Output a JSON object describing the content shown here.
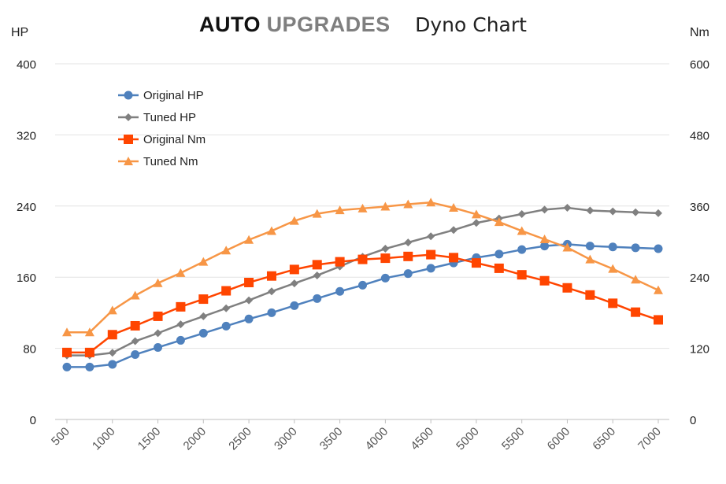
{
  "title": {
    "brand_bold": "AUTO",
    "brand_gray": "UPGRADES",
    "subtitle": "Dyno Chart"
  },
  "chart_data": {
    "type": "line",
    "x": [
      500,
      750,
      1000,
      1250,
      1500,
      1750,
      2000,
      2250,
      2500,
      2750,
      3000,
      3250,
      3500,
      3750,
      4000,
      4250,
      4500,
      4750,
      5000,
      5250,
      5500,
      5750,
      6000,
      6250,
      6500,
      6750,
      7000
    ],
    "x_tick_labels": [
      "500",
      "1000",
      "1500",
      "2000",
      "2500",
      "3000",
      "3500",
      "4000",
      "4500",
      "5000",
      "5500",
      "6000",
      "6500",
      "7000"
    ],
    "y_left": {
      "label": "HP",
      "range": [
        0,
        400
      ],
      "ticks": [
        "0",
        "80",
        "160",
        "240",
        "320",
        "400"
      ]
    },
    "y_right": {
      "label": "Nm",
      "range": [
        0,
        600
      ],
      "ticks": [
        "0",
        "120",
        "240",
        "360",
        "480",
        "600"
      ]
    },
    "grid": true,
    "legend_position": "top-left",
    "series": [
      {
        "name": "Original HP",
        "axis": "left",
        "color": "#4f81bd",
        "marker": "circle",
        "values": [
          59,
          59,
          62,
          73,
          81,
          89,
          97,
          105,
          113,
          120,
          128,
          136,
          144,
          151,
          159,
          164,
          170,
          176,
          182,
          186,
          191,
          195,
          197,
          195,
          194,
          193,
          192
        ]
      },
      {
        "name": "Tuned HP",
        "axis": "left",
        "color": "#808080",
        "marker": "diamond",
        "values": [
          72,
          72,
          75,
          88,
          97,
          107,
          116,
          125,
          134,
          144,
          153,
          162,
          172,
          183,
          192,
          199,
          206,
          213,
          221,
          226,
          231,
          236,
          238,
          235,
          234,
          233,
          232
        ]
      },
      {
        "name": "Original Nm",
        "axis": "right",
        "color": "#ff4500",
        "marker": "square",
        "values": [
          113,
          113,
          143,
          158,
          174,
          190,
          203,
          217,
          231,
          242,
          253,
          261,
          266,
          270,
          272,
          275,
          278,
          273,
          264,
          255,
          244,
          234,
          222,
          210,
          196,
          181,
          168
        ]
      },
      {
        "name": "Tuned Nm",
        "axis": "right",
        "color": "#f79646",
        "marker": "triangle",
        "values": [
          147,
          147,
          184,
          209,
          230,
          247,
          266,
          285,
          303,
          318,
          335,
          347,
          353,
          356,
          359,
          363,
          366,
          357,
          346,
          333,
          318,
          304,
          290,
          270,
          254,
          236,
          218
        ]
      }
    ]
  }
}
